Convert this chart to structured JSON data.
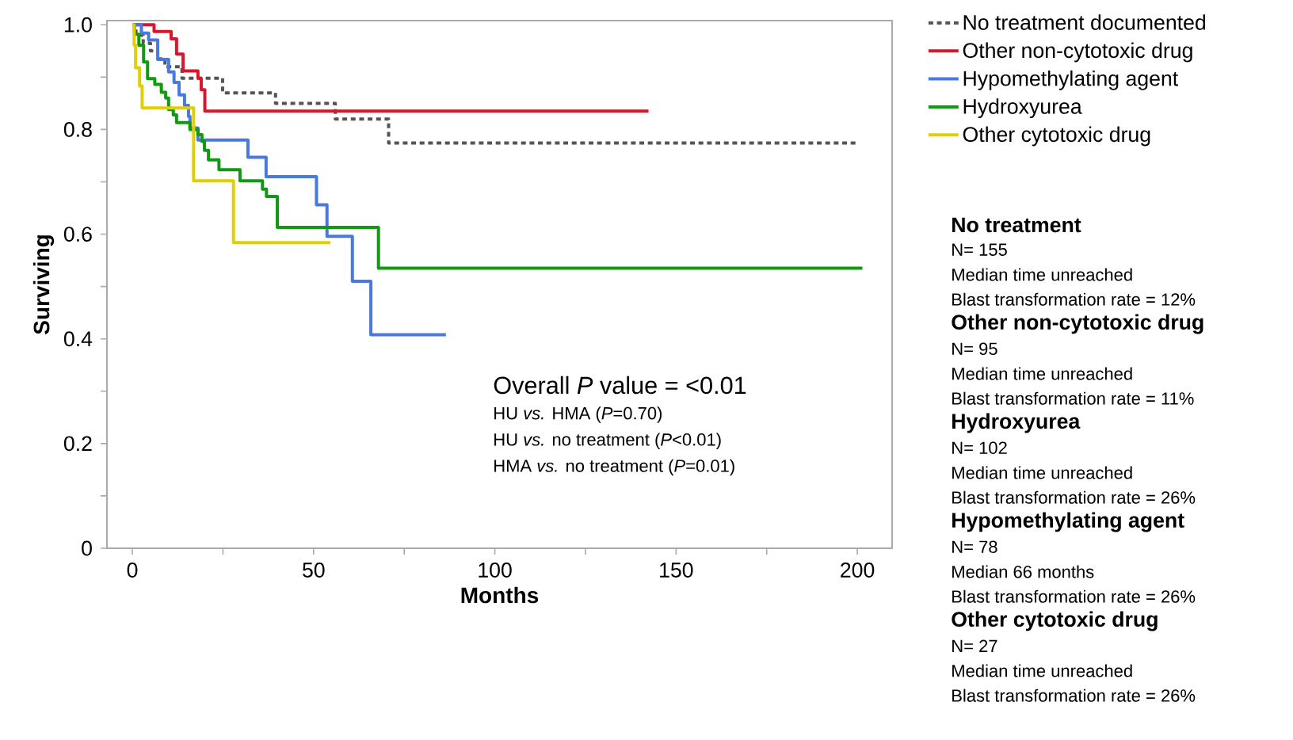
{
  "chart_data": {
    "type": "step",
    "xlabel": "Months",
    "ylabel": "Surviving",
    "xlim": [
      -7,
      209.6
    ],
    "ylim": [
      0,
      1.008
    ],
    "xticks": [
      0,
      50,
      100,
      150,
      200
    ],
    "yticks": [
      0,
      0.2,
      0.4,
      0.6,
      0.8,
      {
        "value": 1,
        "label": "1.0"
      }
    ],
    "grid": false,
    "legend": "right",
    "marker": "none",
    "series": [
      {
        "name": "No treatment documented",
        "color": "#555555",
        "line_style": "dashed",
        "x": [
          0,
          1,
          3,
          5,
          7,
          9,
          13.7,
          24.9,
          39.5,
          56,
          70.7,
          200
        ],
        "values": [
          1,
          0.98,
          0.965,
          0.95,
          0.935,
          0.92,
          0.898,
          0.87,
          0.85,
          0.82,
          0.774,
          0.774
        ]
      },
      {
        "name": "Other non-cytotoxic drug",
        "color": "#d7182a",
        "x": [
          0,
          6,
          10.7,
          12.2,
          14,
          18.1,
          19,
          20,
          142.4
        ],
        "values": [
          1,
          0.987,
          0.973,
          0.944,
          0.912,
          0.898,
          0.876,
          0.835,
          0.835
        ]
      },
      {
        "name": "Hypomethylating agent",
        "color": "#4878e0",
        "x": [
          0,
          2.5,
          4.5,
          7,
          10,
          11.5,
          12.9,
          14.4,
          15.5,
          15.9,
          18.1,
          31.9,
          36.9,
          50.8,
          53.7,
          60.7,
          65.8,
          86.5
        ],
        "values": [
          1,
          0.984,
          0.971,
          0.934,
          0.91,
          0.89,
          0.866,
          0.846,
          0.825,
          0.803,
          0.78,
          0.747,
          0.71,
          0.656,
          0.596,
          0.51,
          0.408,
          0.408
        ]
      },
      {
        "name": "Hydroxyurea",
        "color": "#119911",
        "x": [
          0,
          0.6,
          1.8,
          3.1,
          4.2,
          6.2,
          8.0,
          9.2,
          10,
          11.3,
          12.2,
          15.9,
          18.1,
          19.2,
          19.9,
          21.0,
          23.9,
          29.7,
          35.9,
          37.0,
          40.0,
          67.9,
          201.4
        ],
        "values": [
          1,
          0.982,
          0.961,
          0.929,
          0.897,
          0.886,
          0.871,
          0.86,
          0.838,
          0.828,
          0.813,
          0.8,
          0.79,
          0.777,
          0.76,
          0.742,
          0.723,
          0.702,
          0.686,
          0.672,
          0.613,
          0.535,
          0.535
        ]
      },
      {
        "name": "Other cytotoxic drug",
        "color": "#e0d000",
        "x": [
          0,
          0.5,
          0.9,
          2.0,
          2.7,
          16.9,
          27.9,
          54.6
        ],
        "values": [
          1,
          0.961,
          0.918,
          0.883,
          0.841,
          0.702,
          0.584,
          0.584
        ]
      }
    ],
    "annotations": [
      "Overall *P* value = <0.01",
      "HU *vs.* HMA (*P*=0.70)",
      "HU *vs.* no treatment (*P*<0.01)",
      "HMA *vs.* no treatment (*P*=0.01)",
      "No treatment",
      "N= 155",
      "Median time unreached",
      "Blast transformation rate = 12%",
      "Other non-cytotoxic drug",
      "N= 95",
      "Median time unreached",
      "Blast transformation rate = 11%",
      "Hydroxyurea",
      "N= 102",
      "Median time unreached",
      "Blast transformation rate = 26%",
      "Hypomethylating agent",
      "N= 78",
      "Median 66 months",
      "Blast transformation rate = 26%",
      "Other cytotoxic drug",
      "N= 27",
      "Median time unreached",
      "Blast transformation rate = 26%"
    ]
  }
}
